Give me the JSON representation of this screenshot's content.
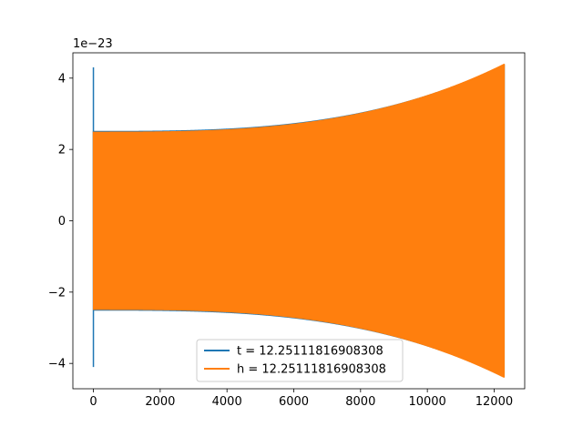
{
  "chart_data": {
    "type": "line",
    "offset_label": "1e−23",
    "xlim": [
      -615,
      12915
    ],
    "ylim": [
      -4.71,
      4.71
    ],
    "x_ticks": [
      0,
      2000,
      4000,
      6000,
      8000,
      10000,
      12000
    ],
    "x_tick_labels": [
      "0",
      "2000",
      "4000",
      "6000",
      "8000",
      "10000",
      "12000"
    ],
    "y_ticks": [
      -4,
      -2,
      0,
      2,
      4
    ],
    "y_tick_labels": [
      "−4",
      "−2",
      "0",
      "2",
      "4"
    ],
    "grid": false,
    "legend_position": "lower center",
    "series": [
      {
        "name": "t = 12.25111816908308",
        "color": "#1f77b4",
        "x_range": [
          0,
          12300
        ],
        "amplitude_start": 2.52,
        "amplitude_end": 4.38,
        "spike_peak": 4.3,
        "spike_trough": -4.1
      },
      {
        "name": "h = 12.25111816908308",
        "color": "#ff7f0e",
        "x_range": [
          0,
          12300
        ],
        "amplitude_start": 2.5,
        "amplitude_end": 4.4
      }
    ]
  }
}
